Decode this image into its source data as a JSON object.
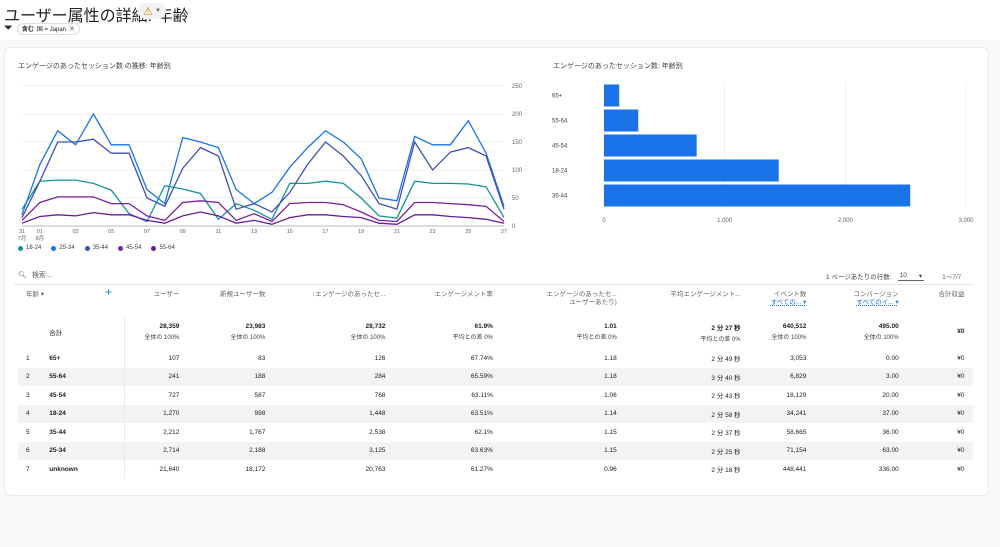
{
  "header": {
    "title": "ユーザー属性の詳細: 年齢",
    "warning_icon": "warning-triangle-icon",
    "filter_chip": {
      "prefix": "含む",
      "text": "国 = Japan"
    }
  },
  "charts": {
    "line_title": "エンゲージのあったセッション数 の推移: 年齢別",
    "bar_title": "エンゲージのあったセッション数: 年齢別"
  },
  "chart_data": [
    {
      "type": "line",
      "title": "エンゲージのあったセッション数 の推移: 年齢別",
      "x_tick_labels": [
        "31\n7月",
        "01\n8月",
        "03",
        "05",
        "07",
        "09",
        "11",
        "13",
        "15",
        "17",
        "19",
        "21",
        "23",
        "25",
        "27"
      ],
      "y_ticks": [
        0,
        50,
        100,
        150,
        200,
        250
      ],
      "ylim": [
        0,
        250
      ],
      "y_axis_side": "right",
      "x": [
        "07-31",
        "08-01",
        "08-02",
        "08-03",
        "08-04",
        "08-05",
        "08-06",
        "08-07",
        "08-08",
        "08-09",
        "08-10",
        "08-11",
        "08-12",
        "08-13",
        "08-14",
        "08-15",
        "08-16",
        "08-17",
        "08-18",
        "08-19",
        "08-20",
        "08-21",
        "08-22",
        "08-23",
        "08-24",
        "08-25",
        "08-26",
        "08-27"
      ],
      "series": [
        {
          "name": "18-24",
          "color": "#12939a",
          "values": [
            30,
            80,
            82,
            82,
            76,
            64,
            22,
            8,
            72,
            66,
            58,
            12,
            40,
            28,
            12,
            76,
            76,
            80,
            76,
            50,
            18,
            14,
            80,
            76,
            76,
            75,
            70,
            15
          ]
        },
        {
          "name": "25-34",
          "color": "#1a73e8",
          "values": [
            20,
            110,
            170,
            145,
            200,
            145,
            145,
            65,
            40,
            158,
            150,
            140,
            65,
            40,
            60,
            105,
            140,
            170,
            150,
            120,
            50,
            45,
            160,
            145,
            145,
            188,
            130,
            35
          ]
        },
        {
          "name": "35-44",
          "color": "#3f51b5",
          "values": [
            15,
            80,
            150,
            150,
            155,
            130,
            130,
            50,
            35,
            103,
            140,
            125,
            30,
            40,
            25,
            60,
            110,
            150,
            125,
            90,
            40,
            30,
            150,
            100,
            132,
            140,
            125,
            30
          ]
        },
        {
          "name": "45-54",
          "color": "#7b1fa2",
          "values": [
            10,
            42,
            52,
            52,
            52,
            40,
            40,
            18,
            10,
            42,
            45,
            42,
            10,
            22,
            8,
            40,
            42,
            42,
            38,
            25,
            10,
            8,
            42,
            42,
            40,
            38,
            35,
            8
          ]
        },
        {
          "name": "55-64",
          "color": "#6a1b9a",
          "values": [
            5,
            17,
            20,
            18,
            24,
            20,
            20,
            10,
            5,
            18,
            25,
            18,
            5,
            10,
            3,
            15,
            20,
            20,
            17,
            15,
            5,
            3,
            20,
            20,
            17,
            15,
            12,
            5
          ]
        }
      ],
      "legend": [
        "18-24",
        "25-34",
        "35-44",
        "45-54",
        "55-64"
      ],
      "legend_position": "bottom"
    },
    {
      "type": "bar",
      "orientation": "horizontal",
      "title": "エンゲージのあったセッション数: 年齢別",
      "categories": [
        "65+",
        "55-64",
        "45-54",
        "18-24",
        "35-44"
      ],
      "values": [
        126,
        284,
        768,
        1448,
        2538
      ],
      "x_ticks": [
        "0",
        "1,000",
        "2,000",
        "3,000"
      ],
      "xlim": [
        0,
        3000
      ],
      "color": "#1a73e8"
    }
  ],
  "toolbar": {
    "search_placeholder": "検索...",
    "rows_per_page_label": "1 ページあたりの行数:",
    "rows_per_page_value": "10",
    "pagination": "1〜7/7"
  },
  "table": {
    "dimension_header": "年齢",
    "headers": [
      {
        "label": "ユーザー"
      },
      {
        "label": "新規ユーザー数"
      },
      {
        "label": "↑エンゲージのあったセ..."
      },
      {
        "label": "エンゲージメント率"
      },
      {
        "label": "エンゲージのあったセ...",
        "label2": "ユーザーあたり)"
      },
      {
        "label": "平均エンゲージメント..."
      },
      {
        "label": "イベント数",
        "sub": "すべての... ▾"
      },
      {
        "label": "コンバージョン",
        "sub": "すべてのイ... ▾"
      },
      {
        "label": "合計収益"
      }
    ],
    "total": {
      "label": "合計",
      "values": [
        {
          "v": "28,359",
          "s": "全体の 100%"
        },
        {
          "v": "23,983",
          "s": "全体の 100%"
        },
        {
          "v": "28,732",
          "s": "全体の 100%"
        },
        {
          "v": "61.9%",
          "s": "平均との差 0%"
        },
        {
          "v": "1.01",
          "s": "平均との差 0%"
        },
        {
          "v": "2 分 27 秒",
          "s": "平均との差 0%"
        },
        {
          "v": "640,512",
          "s": "全体の 100%"
        },
        {
          "v": "495.00",
          "s": "全体の 100%"
        },
        {
          "v": "¥0",
          "s": ""
        }
      ]
    },
    "rows": [
      {
        "idx": "1",
        "age": "65+",
        "cells": [
          "107",
          "83",
          "126",
          "67.74%",
          "1.18",
          "2 分 49 秒",
          "3,053",
          "0.00",
          "¥0"
        ]
      },
      {
        "idx": "2",
        "age": "55-64",
        "cells": [
          "241",
          "188",
          "284",
          "65.59%",
          "1.18",
          "3 分 40 秒",
          "6,829",
          "3.00",
          "¥0"
        ]
      },
      {
        "idx": "3",
        "age": "45-54",
        "cells": [
          "727",
          "587",
          "768",
          "63.11%",
          "1.06",
          "2 分 43 秒",
          "18,129",
          "20.00",
          "¥0"
        ]
      },
      {
        "idx": "4",
        "age": "18-24",
        "cells": [
          "1,270",
          "998",
          "1,448",
          "63.51%",
          "1.14",
          "2 分 58 秒",
          "34,241",
          "37.00",
          "¥0"
        ]
      },
      {
        "idx": "5",
        "age": "35-44",
        "cells": [
          "2,212",
          "1,767",
          "2,538",
          "62.1%",
          "1.15",
          "2 分 37 秒",
          "58,665",
          "36.00",
          "¥0"
        ]
      },
      {
        "idx": "6",
        "age": "25-34",
        "cells": [
          "2,714",
          "2,188",
          "3,125",
          "63.63%",
          "1.15",
          "2 分 25 秒",
          "71,154",
          "63.00",
          "¥0"
        ]
      },
      {
        "idx": "7",
        "age": "unknown",
        "cells": [
          "21,640",
          "18,172",
          "20,763",
          "61.27%",
          "0.96",
          "2 分 18 秒",
          "448,441",
          "336.00",
          "¥0"
        ]
      }
    ]
  }
}
